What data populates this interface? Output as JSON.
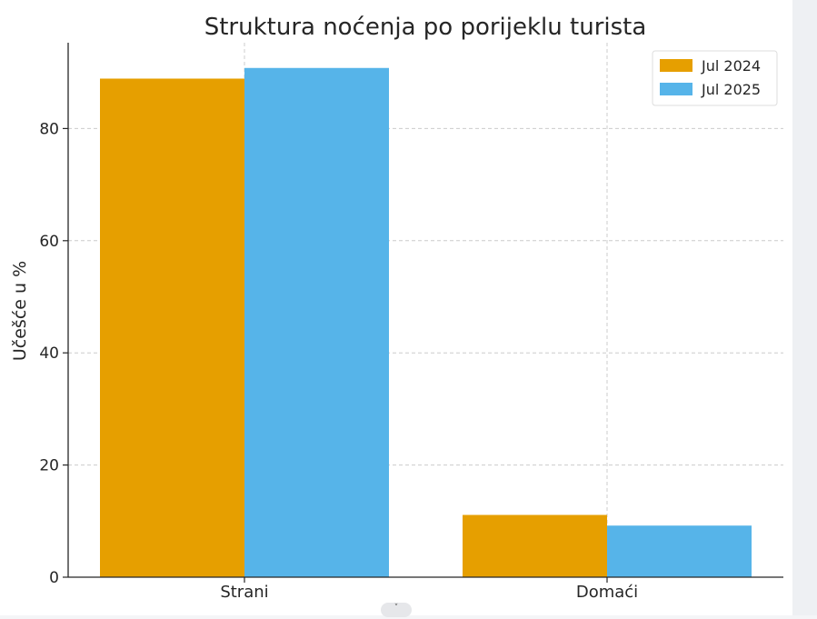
{
  "chart_data": {
    "type": "bar",
    "title": "Struktura noćenja po porijeklu turista",
    "xlabel": "",
    "ylabel": "Učešće u %",
    "categories": [
      "Strani",
      "Domaći"
    ],
    "series": [
      {
        "name": "Jul 2024",
        "values": [
          88.9,
          11.1
        ],
        "color": "#e69f00"
      },
      {
        "name": "Jul 2025",
        "values": [
          90.8,
          9.2
        ],
        "color": "#56b4e9"
      }
    ],
    "ylim": [
      0,
      95.3
    ],
    "yticks": [
      0,
      20,
      40,
      60,
      80
    ],
    "grid": true,
    "legend": "top-right"
  },
  "ui": {
    "scroll_icon": "chevron-down-icon",
    "scroll_glyph": "˅"
  }
}
